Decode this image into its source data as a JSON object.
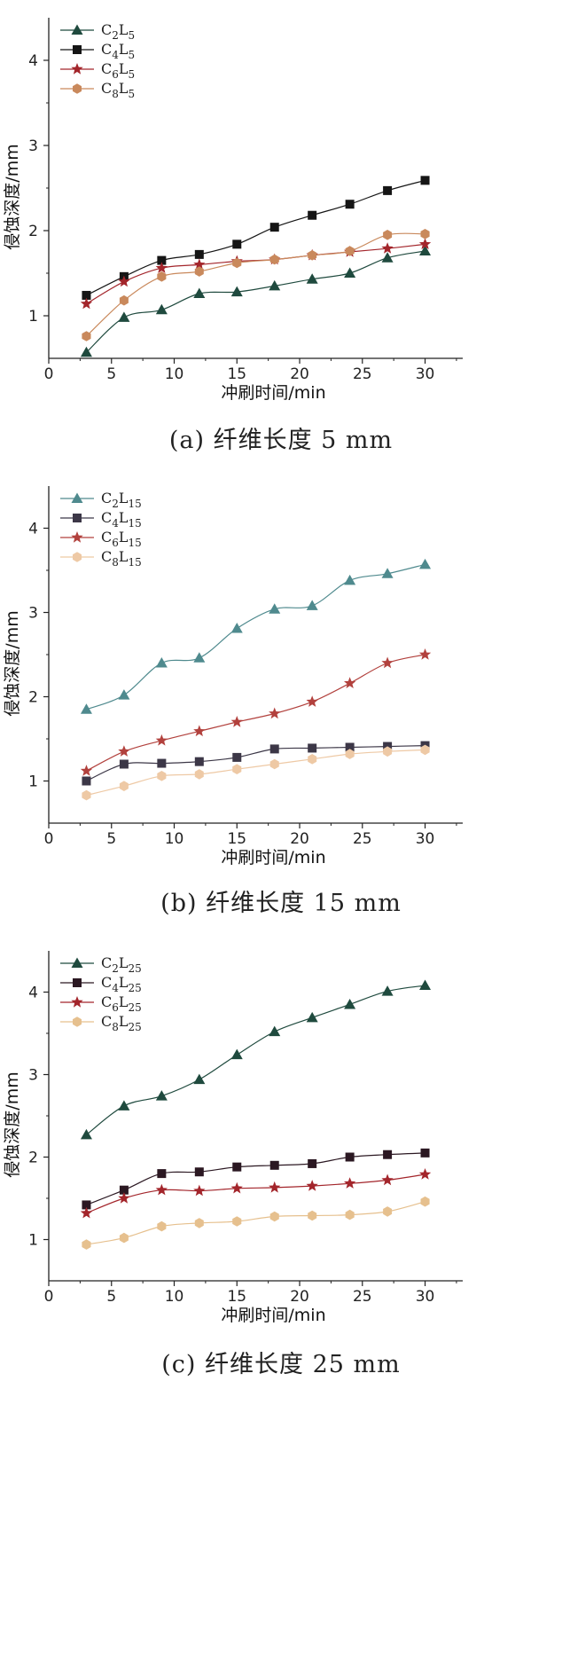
{
  "chart_data": [
    {
      "type": "line",
      "caption": "(a) 纤维长度 5 mm",
      "xlabel": "冲刷时间/min",
      "ylabel": "侵蚀深度/mm",
      "xlim": [
        0,
        33
      ],
      "ylim": [
        0.5,
        4.5
      ],
      "xticks": [
        0,
        5,
        10,
        15,
        20,
        25,
        30
      ],
      "yticks": [
        1,
        2,
        3,
        4
      ],
      "legend_position": "top-left",
      "x": [
        3,
        6,
        9,
        12,
        15,
        18,
        21,
        24,
        27,
        30
      ],
      "series": [
        {
          "name": "C2L5",
          "legend_base": "C",
          "legend_sub1": "2",
          "legend_mid": "L",
          "legend_sub2": "5",
          "color": "#1f4a3e",
          "marker": "triangle",
          "values": [
            0.57,
            0.98,
            1.07,
            1.26,
            1.28,
            1.35,
            1.43,
            1.5,
            1.68,
            1.76
          ]
        },
        {
          "name": "C4L5",
          "legend_base": "C",
          "legend_sub1": "4",
          "legend_mid": "L",
          "legend_sub2": "5",
          "color": "#151515",
          "marker": "square",
          "values": [
            1.24,
            1.46,
            1.65,
            1.72,
            1.84,
            2.04,
            2.18,
            2.31,
            2.47,
            2.59
          ]
        },
        {
          "name": "C6L5",
          "legend_base": "C",
          "legend_sub1": "6",
          "legend_mid": "L",
          "legend_sub2": "5",
          "color": "#a3252b",
          "marker": "star",
          "values": [
            1.14,
            1.4,
            1.56,
            1.6,
            1.64,
            1.66,
            1.71,
            1.75,
            1.79,
            1.84
          ]
        },
        {
          "name": "C8L5",
          "legend_base": "C",
          "legend_sub1": "8",
          "legend_mid": "L",
          "legend_sub2": "5",
          "color": "#c9895c",
          "marker": "hexagon",
          "values": [
            0.76,
            1.18,
            1.46,
            1.52,
            1.62,
            1.66,
            1.71,
            1.76,
            1.95,
            1.96
          ]
        }
      ]
    },
    {
      "type": "line",
      "caption": "(b) 纤维长度 15 mm",
      "xlabel": "冲刷时间/min",
      "ylabel": "侵蚀深度/mm",
      "xlim": [
        0,
        33
      ],
      "ylim": [
        0.5,
        4.5
      ],
      "xticks": [
        0,
        5,
        10,
        15,
        20,
        25,
        30
      ],
      "yticks": [
        1,
        2,
        3,
        4
      ],
      "legend_position": "top-left",
      "x": [
        3,
        6,
        9,
        12,
        15,
        18,
        21,
        24,
        27,
        30
      ],
      "series": [
        {
          "name": "C2L15",
          "legend_base": "C",
          "legend_sub1": "2",
          "legend_mid": "L",
          "legend_sub2": "15",
          "color": "#4f8a8e",
          "marker": "triangle",
          "values": [
            1.85,
            2.02,
            2.4,
            2.46,
            2.81,
            3.04,
            3.08,
            3.38,
            3.46,
            3.57
          ]
        },
        {
          "name": "C4L15",
          "legend_base": "C",
          "legend_sub1": "4",
          "legend_mid": "L",
          "legend_sub2": "15",
          "color": "#3c3747",
          "marker": "square",
          "values": [
            1.0,
            1.2,
            1.21,
            1.23,
            1.28,
            1.38,
            1.39,
            1.4,
            1.41,
            1.42
          ]
        },
        {
          "name": "C6L15",
          "legend_base": "C",
          "legend_sub1": "6",
          "legend_mid": "L",
          "legend_sub2": "15",
          "color": "#b2413d",
          "marker": "star",
          "values": [
            1.12,
            1.35,
            1.48,
            1.59,
            1.7,
            1.8,
            1.94,
            2.16,
            2.4,
            2.5
          ]
        },
        {
          "name": "C8L15",
          "legend_base": "C",
          "legend_sub1": "8",
          "legend_mid": "L",
          "legend_sub2": "15",
          "color": "#eec9a5",
          "marker": "hexagon",
          "values": [
            0.83,
            0.94,
            1.06,
            1.08,
            1.14,
            1.2,
            1.26,
            1.32,
            1.35,
            1.37
          ]
        }
      ]
    },
    {
      "type": "line",
      "caption": "(c) 纤维长度 25 mm",
      "xlabel": "冲刷时间/min",
      "ylabel": "侵蚀深度/mm",
      "xlim": [
        0,
        33
      ],
      "ylim": [
        0.5,
        4.5
      ],
      "xticks": [
        0,
        5,
        10,
        15,
        20,
        25,
        30
      ],
      "yticks": [
        1,
        2,
        3,
        4
      ],
      "legend_position": "top-left",
      "x": [
        3,
        6,
        9,
        12,
        15,
        18,
        21,
        24,
        27,
        30
      ],
      "series": [
        {
          "name": "C2L25",
          "legend_base": "C",
          "legend_sub1": "2",
          "legend_mid": "L",
          "legend_sub2": "25",
          "color": "#1f4a3e",
          "marker": "triangle",
          "values": [
            2.27,
            2.62,
            2.74,
            2.94,
            3.24,
            3.52,
            3.69,
            3.85,
            4.01,
            4.08
          ]
        },
        {
          "name": "C4L25",
          "legend_base": "C",
          "legend_sub1": "4",
          "legend_mid": "L",
          "legend_sub2": "25",
          "color": "#2b1822",
          "marker": "square",
          "values": [
            1.42,
            1.6,
            1.8,
            1.82,
            1.88,
            1.9,
            1.92,
            2.0,
            2.03,
            2.05
          ]
        },
        {
          "name": "C6L25",
          "legend_base": "C",
          "legend_sub1": "6",
          "legend_mid": "L",
          "legend_sub2": "25",
          "color": "#a3252b",
          "marker": "star",
          "values": [
            1.32,
            1.5,
            1.6,
            1.59,
            1.62,
            1.63,
            1.65,
            1.68,
            1.72,
            1.79
          ]
        },
        {
          "name": "C8L25",
          "legend_base": "C",
          "legend_sub1": "8",
          "legend_mid": "L",
          "legend_sub2": "25",
          "color": "#e6c08e",
          "marker": "hexagon",
          "values": [
            0.94,
            1.02,
            1.16,
            1.2,
            1.22,
            1.28,
            1.29,
            1.3,
            1.34,
            1.46
          ]
        }
      ]
    }
  ]
}
